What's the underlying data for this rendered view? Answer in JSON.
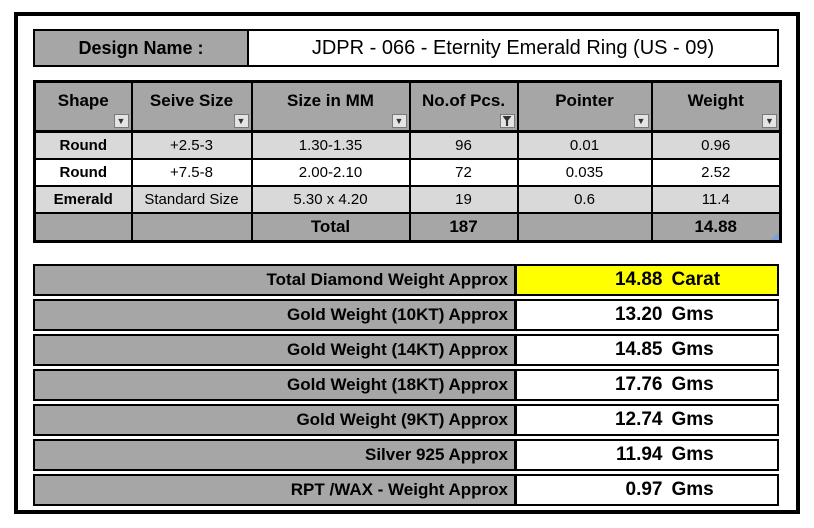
{
  "design": {
    "label": "Design Name :",
    "value": "JDPR - 066 - Eternity Emerald Ring (US - 09)"
  },
  "stones": {
    "columns": [
      {
        "label": "Shape",
        "filter": "dropdown"
      },
      {
        "label": "Seive Size",
        "filter": "dropdown"
      },
      {
        "label": "Size in MM",
        "filter": "dropdown"
      },
      {
        "label": "No.of Pcs.",
        "filter": "active-funnel"
      },
      {
        "label": "Pointer",
        "filter": "dropdown"
      },
      {
        "label": "Weight",
        "filter": "dropdown"
      }
    ],
    "rows": [
      {
        "shape": "Round",
        "seive_size": "+2.5-3",
        "size_mm": "1.30-1.35",
        "pcs": "96",
        "pointer": "0.01",
        "weight": "0.96"
      },
      {
        "shape": "Round",
        "seive_size": "+7.5-8",
        "size_mm": "2.00-2.10",
        "pcs": "72",
        "pointer": "0.035",
        "weight": "2.52"
      },
      {
        "shape": "Emerald",
        "seive_size": "Standard Size",
        "size_mm": "5.30 x 4.20",
        "pcs": "19",
        "pointer": "0.6",
        "weight": "11.4"
      }
    ],
    "total": {
      "label": "Total",
      "pcs": "187",
      "weight": "14.88"
    }
  },
  "summary": {
    "rows": [
      {
        "label": "Total Diamond Weight Approx",
        "number": "14.88",
        "unit": "Carat",
        "highlight": true
      },
      {
        "label": "Gold Weight (10KT) Approx",
        "number": "13.20",
        "unit": "Gms"
      },
      {
        "label": "Gold Weight (14KT) Approx",
        "number": "14.85",
        "unit": "Gms"
      },
      {
        "label": "Gold Weight (18KT) Approx",
        "number": "17.76",
        "unit": "Gms"
      },
      {
        "label": "Gold Weight (9KT) Approx",
        "number": "12.74",
        "unit": "Gms"
      },
      {
        "label": "Silver 925 Approx",
        "number": "11.94",
        "unit": "Gms"
      },
      {
        "label": "RPT /WAX - Weight Approx",
        "number": "0.97",
        "unit": "Gms"
      }
    ]
  },
  "icons": {
    "dropdown_arrow": "▼"
  },
  "colors": {
    "cell_gray": "#a6a6a6",
    "row_light_gray": "#d9d9d9",
    "highlight_yellow": "#ffff00",
    "border_black": "#000000",
    "corner_marker_blue": "#7f9fd8"
  }
}
